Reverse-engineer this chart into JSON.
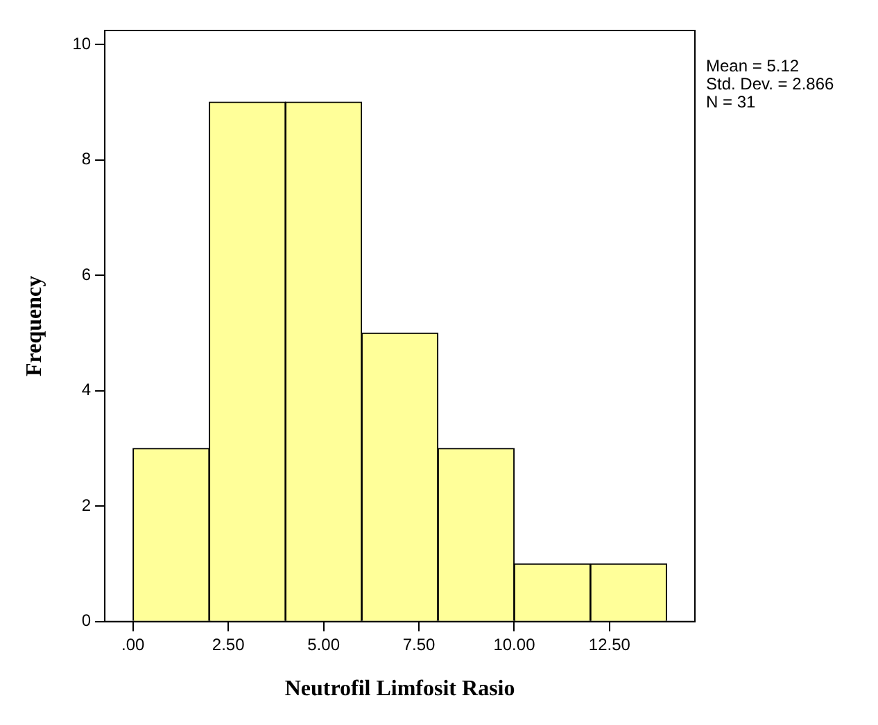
{
  "chart_data": {
    "type": "histogram",
    "xlabel": "Neutrofil Limfosit Rasio",
    "ylabel": "Frequency",
    "bins": [
      0,
      2,
      4,
      6,
      8,
      10,
      12,
      14
    ],
    "values": [
      3,
      9,
      9,
      5,
      3,
      1,
      1
    ],
    "color": "#ffff99",
    "xlim": [
      -0.74,
      14.74
    ],
    "xticks": [
      {
        "value": 0,
        "label": ".00"
      },
      {
        "value": 2.5,
        "label": "2.50"
      },
      {
        "value": 5,
        "label": "5.00"
      },
      {
        "value": 7.5,
        "label": "7.50"
      },
      {
        "value": 10,
        "label": "10.00"
      },
      {
        "value": 12.5,
        "label": "12.50"
      }
    ],
    "ylim": [
      0,
      10.24
    ],
    "yticks": [
      0,
      2,
      4,
      6,
      8,
      10
    ],
    "grid": false,
    "legend": false,
    "annotations": [
      "Mean = 5.12",
      "Std. Dev. = 2.866",
      "N = 31"
    ]
  }
}
